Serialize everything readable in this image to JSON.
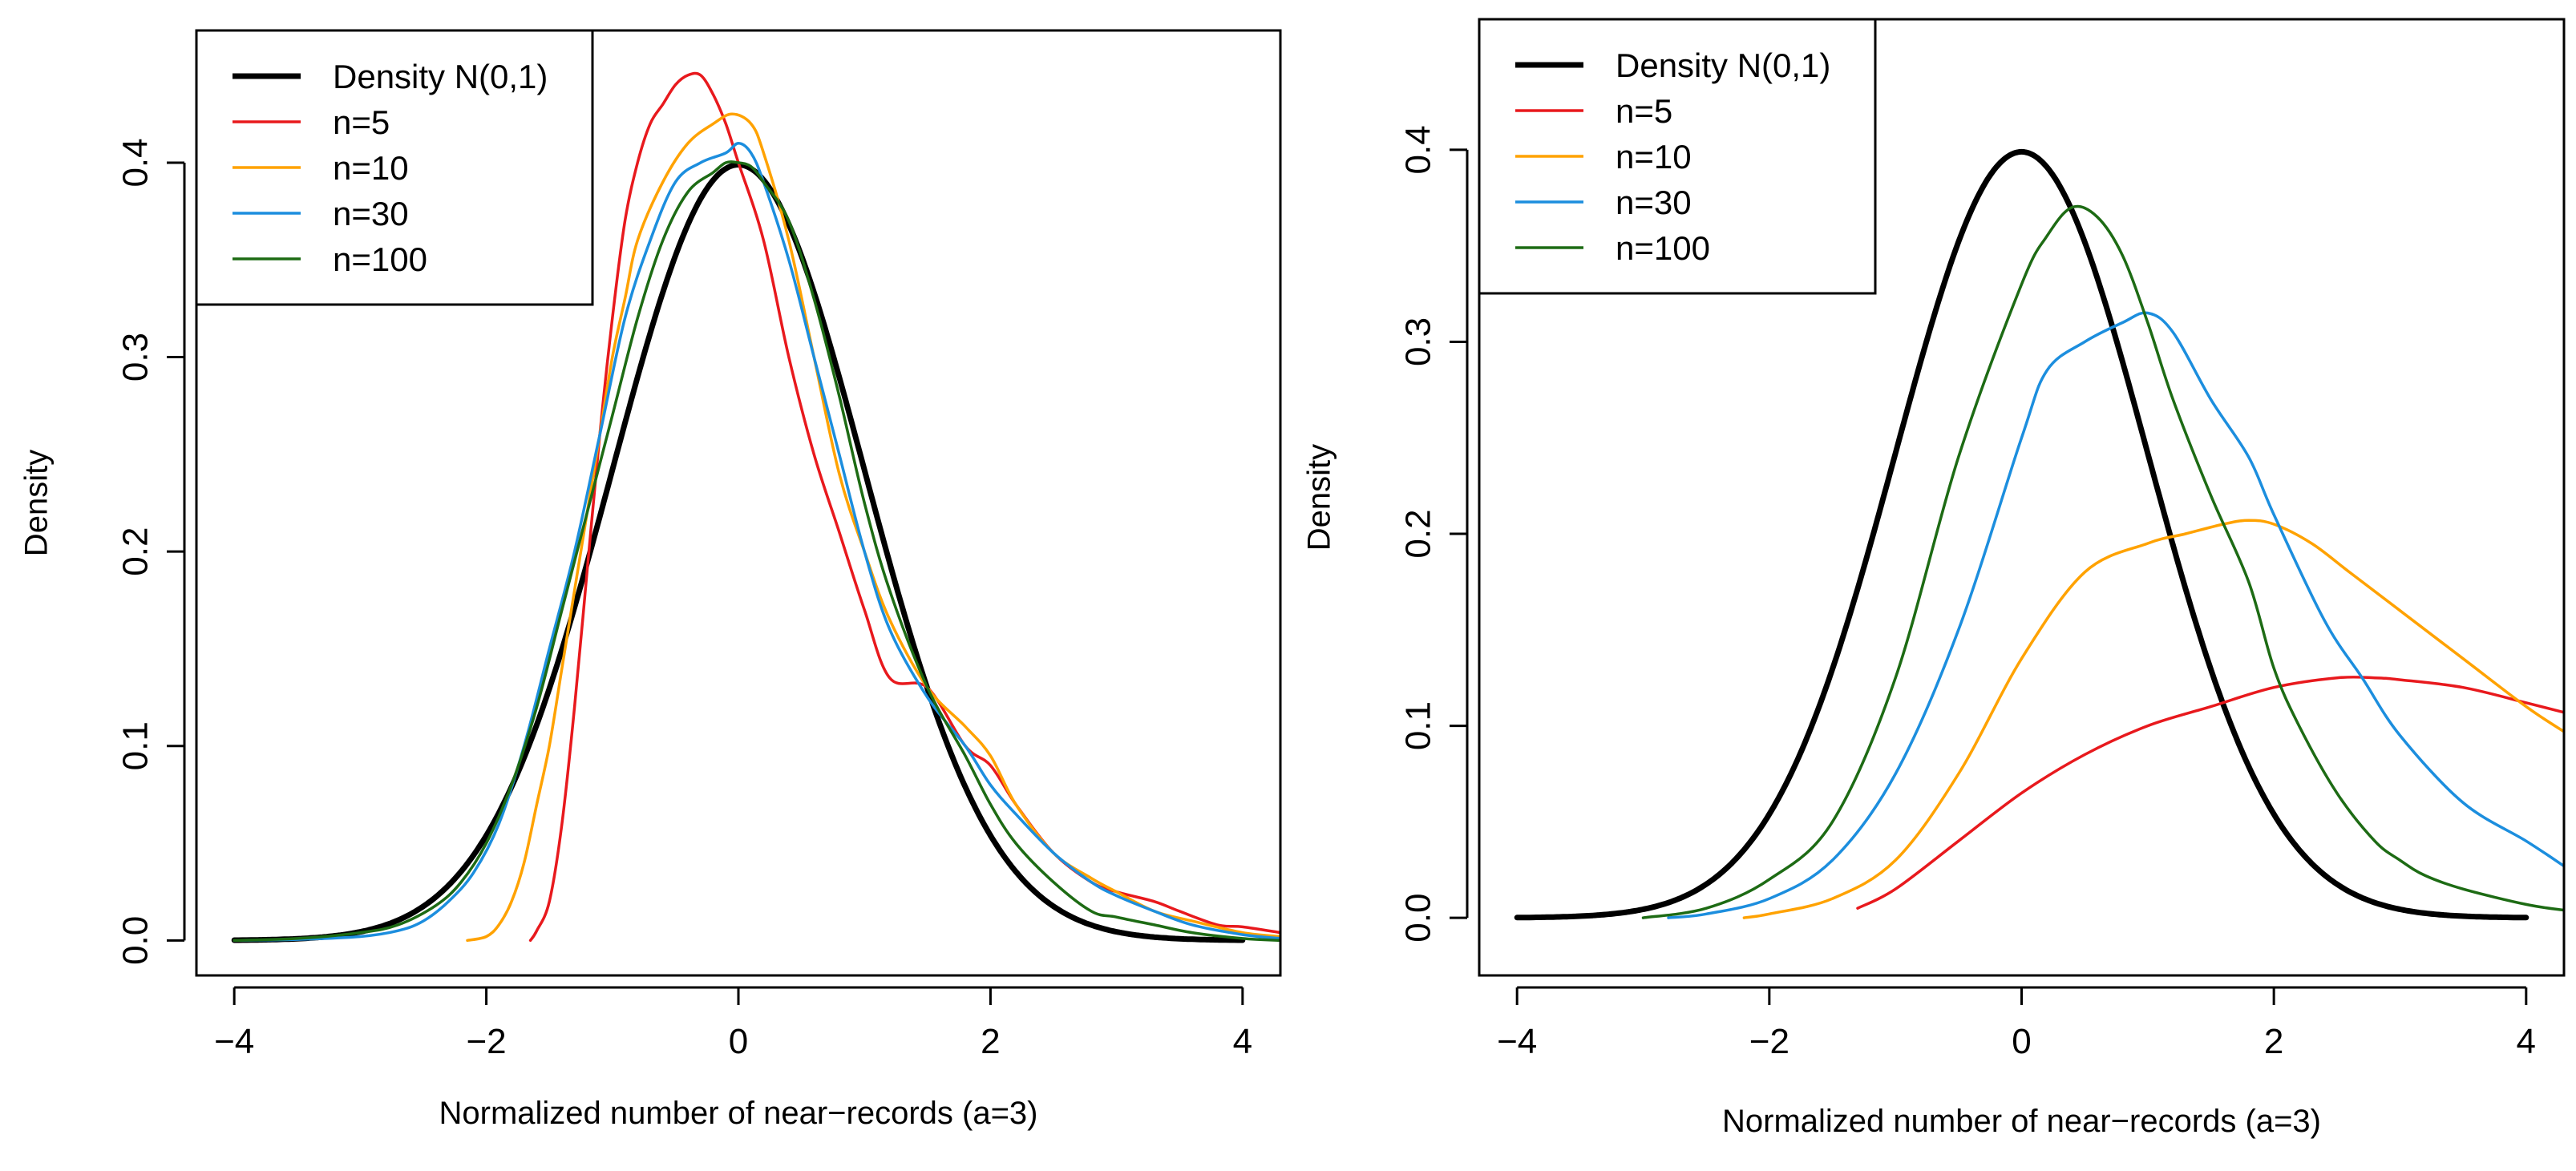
{
  "chart_data": [
    {
      "type": "line",
      "title": "",
      "xlabel": "Normalized number of near−records (a=3)",
      "ylabel": "Density",
      "xlim": [
        -4.3,
        4.3
      ],
      "ylim": [
        -0.018,
        0.468
      ],
      "xticks": [
        -4,
        -2,
        0,
        2,
        4
      ],
      "xtick_labels": [
        "−4",
        "−2",
        "0",
        "2",
        "4"
      ],
      "yticks": [
        0.0,
        0.1,
        0.2,
        0.3,
        0.4
      ],
      "ytick_labels": [
        "0.0",
        "0.1",
        "0.2",
        "0.3",
        "0.4"
      ],
      "legend_position": "top-left",
      "series": [
        {
          "name": "Density N(0,1)",
          "color": "#000000",
          "normal": true,
          "x": [
            -4,
            4
          ]
        },
        {
          "name": "n=5",
          "color": "#e8191d",
          "x": [
            -1.65,
            -1.6,
            -1.5,
            -1.4,
            -1.3,
            -1.2,
            -1.1,
            -1.0,
            -0.9,
            -0.8,
            -0.7,
            -0.6,
            -0.5,
            -0.4,
            -0.3,
            -0.2,
            -0.1,
            0.0,
            0.2,
            0.4,
            0.6,
            0.8,
            1.0,
            1.2,
            1.5,
            1.8,
            2.0,
            2.2,
            2.5,
            2.8,
            3.0,
            3.3,
            3.5,
            3.8,
            4.0,
            4.3
          ],
          "y": [
            0.0,
            0.005,
            0.02,
            0.06,
            0.12,
            0.19,
            0.26,
            0.32,
            0.37,
            0.4,
            0.42,
            0.43,
            0.44,
            0.445,
            0.445,
            0.435,
            0.42,
            0.4,
            0.36,
            0.3,
            0.25,
            0.21,
            0.17,
            0.135,
            0.13,
            0.1,
            0.09,
            0.07,
            0.045,
            0.03,
            0.025,
            0.02,
            0.015,
            0.008,
            0.007,
            0.004
          ]
        },
        {
          "name": "n=10",
          "color": "#ffa200",
          "x": [
            -2.15,
            -2.0,
            -1.9,
            -1.8,
            -1.7,
            -1.6,
            -1.5,
            -1.4,
            -1.3,
            -1.2,
            -1.1,
            -1.0,
            -0.9,
            -0.8,
            -0.6,
            -0.4,
            -0.2,
            -0.05,
            0.1,
            0.2,
            0.4,
            0.6,
            0.8,
            1.0,
            1.2,
            1.5,
            1.8,
            2.0,
            2.2,
            2.5,
            2.8,
            3.0,
            3.3,
            3.6,
            4.0,
            4.3
          ],
          "y": [
            0.0,
            0.002,
            0.008,
            0.02,
            0.04,
            0.07,
            0.1,
            0.14,
            0.18,
            0.22,
            0.26,
            0.3,
            0.33,
            0.36,
            0.39,
            0.41,
            0.42,
            0.425,
            0.42,
            0.405,
            0.36,
            0.3,
            0.24,
            0.2,
            0.165,
            0.13,
            0.11,
            0.095,
            0.07,
            0.045,
            0.032,
            0.025,
            0.015,
            0.01,
            0.004,
            0.002
          ]
        },
        {
          "name": "n=30",
          "color": "#1c8ede",
          "x": [
            -4.0,
            -3.5,
            -3.0,
            -2.7,
            -2.5,
            -2.3,
            -2.1,
            -1.9,
            -1.7,
            -1.5,
            -1.3,
            -1.1,
            -0.9,
            -0.7,
            -0.5,
            -0.3,
            -0.1,
            0.0,
            0.1,
            0.2,
            0.4,
            0.6,
            0.8,
            1.0,
            1.2,
            1.5,
            1.8,
            2.0,
            2.2,
            2.5,
            2.8,
            3.0,
            3.3,
            3.6,
            4.0,
            4.3
          ],
          "y": [
            0.0,
            0.0005,
            0.002,
            0.005,
            0.01,
            0.02,
            0.035,
            0.06,
            0.1,
            0.15,
            0.2,
            0.26,
            0.32,
            0.36,
            0.39,
            0.4,
            0.405,
            0.41,
            0.405,
            0.39,
            0.35,
            0.3,
            0.25,
            0.2,
            0.16,
            0.125,
            0.1,
            0.08,
            0.065,
            0.045,
            0.03,
            0.023,
            0.015,
            0.008,
            0.003,
            0.001
          ]
        },
        {
          "name": "n=100",
          "color": "#1d6b14",
          "x": [
            -4.0,
            -3.5,
            -3.0,
            -2.7,
            -2.4,
            -2.2,
            -2.0,
            -1.8,
            -1.6,
            -1.4,
            -1.2,
            -1.0,
            -0.8,
            -0.6,
            -0.4,
            -0.2,
            -0.1,
            0.0,
            0.1,
            0.2,
            0.4,
            0.6,
            0.8,
            1.0,
            1.2,
            1.5,
            1.8,
            2.0,
            2.2,
            2.5,
            2.8,
            3.0,
            3.3,
            3.6,
            4.0,
            4.3
          ],
          "y": [
            0.0,
            0.001,
            0.004,
            0.008,
            0.018,
            0.03,
            0.05,
            0.08,
            0.12,
            0.17,
            0.22,
            0.27,
            0.32,
            0.36,
            0.385,
            0.395,
            0.4,
            0.4,
            0.398,
            0.39,
            0.37,
            0.33,
            0.28,
            0.225,
            0.18,
            0.13,
            0.095,
            0.07,
            0.05,
            0.03,
            0.015,
            0.012,
            0.008,
            0.004,
            0.001,
            0.0
          ]
        }
      ]
    },
    {
      "type": "line",
      "title": "",
      "xlabel": "Normalized number of near−records (a=3)",
      "ylabel": "Density",
      "xlim": [
        -4.3,
        4.3
      ],
      "ylim": [
        -0.03,
        0.468
      ],
      "xticks": [
        -4,
        -2,
        0,
        2,
        4
      ],
      "xtick_labels": [
        "−4",
        "−2",
        "0",
        "2",
        "4"
      ],
      "yticks": [
        0.0,
        0.1,
        0.2,
        0.3,
        0.4
      ],
      "ytick_labels": [
        "0.0",
        "0.1",
        "0.2",
        "0.3",
        "0.4"
      ],
      "legend_position": "top-left",
      "series": [
        {
          "name": "Density N(0,1)",
          "color": "#000000",
          "normal": true,
          "x": [
            -4,
            4
          ]
        },
        {
          "name": "n=5",
          "color": "#e8191d",
          "x": [
            -1.3,
            -1.0,
            -0.5,
            0.0,
            0.5,
            1.0,
            1.5,
            2.0,
            2.5,
            2.8,
            3.0,
            3.5,
            4.0,
            4.3
          ],
          "y": [
            0.005,
            0.015,
            0.04,
            0.065,
            0.085,
            0.1,
            0.11,
            0.12,
            0.125,
            0.125,
            0.124,
            0.12,
            0.112,
            0.107
          ]
        },
        {
          "name": "n=10",
          "color": "#ffa200",
          "x": [
            -2.2,
            -2.0,
            -1.5,
            -1.0,
            -0.5,
            0.0,
            0.5,
            1.0,
            1.3,
            1.6,
            1.8,
            2.0,
            2.3,
            2.6,
            3.0,
            3.5,
            4.0,
            4.3
          ],
          "y": [
            0.0,
            0.002,
            0.01,
            0.03,
            0.075,
            0.135,
            0.18,
            0.195,
            0.2,
            0.205,
            0.207,
            0.205,
            0.195,
            0.18,
            0.16,
            0.135,
            0.11,
            0.097
          ]
        },
        {
          "name": "n=30",
          "color": "#1c8ede",
          "x": [
            -2.8,
            -2.5,
            -2.0,
            -1.5,
            -1.0,
            -0.5,
            0.0,
            0.2,
            0.5,
            0.8,
            1.0,
            1.2,
            1.5,
            1.8,
            2.0,
            2.4,
            2.7,
            3.0,
            3.5,
            4.0,
            4.3
          ],
          "y": [
            0.0,
            0.002,
            0.01,
            0.03,
            0.075,
            0.15,
            0.25,
            0.285,
            0.3,
            0.31,
            0.315,
            0.305,
            0.27,
            0.24,
            0.21,
            0.155,
            0.125,
            0.095,
            0.06,
            0.04,
            0.027
          ]
        },
        {
          "name": "n=100",
          "color": "#1d6b14",
          "x": [
            -3.0,
            -2.5,
            -2.0,
            -1.5,
            -1.0,
            -0.5,
            0.0,
            0.2,
            0.4,
            0.6,
            0.8,
            1.0,
            1.2,
            1.5,
            1.8,
            2.0,
            2.2,
            2.5,
            2.8,
            3.0,
            3.2,
            3.5,
            4.0,
            4.3
          ],
          "y": [
            0.0,
            0.005,
            0.02,
            0.05,
            0.125,
            0.24,
            0.33,
            0.355,
            0.37,
            0.365,
            0.345,
            0.31,
            0.27,
            0.22,
            0.175,
            0.13,
            0.1,
            0.065,
            0.04,
            0.03,
            0.022,
            0.015,
            0.007,
            0.004
          ]
        }
      ]
    }
  ]
}
